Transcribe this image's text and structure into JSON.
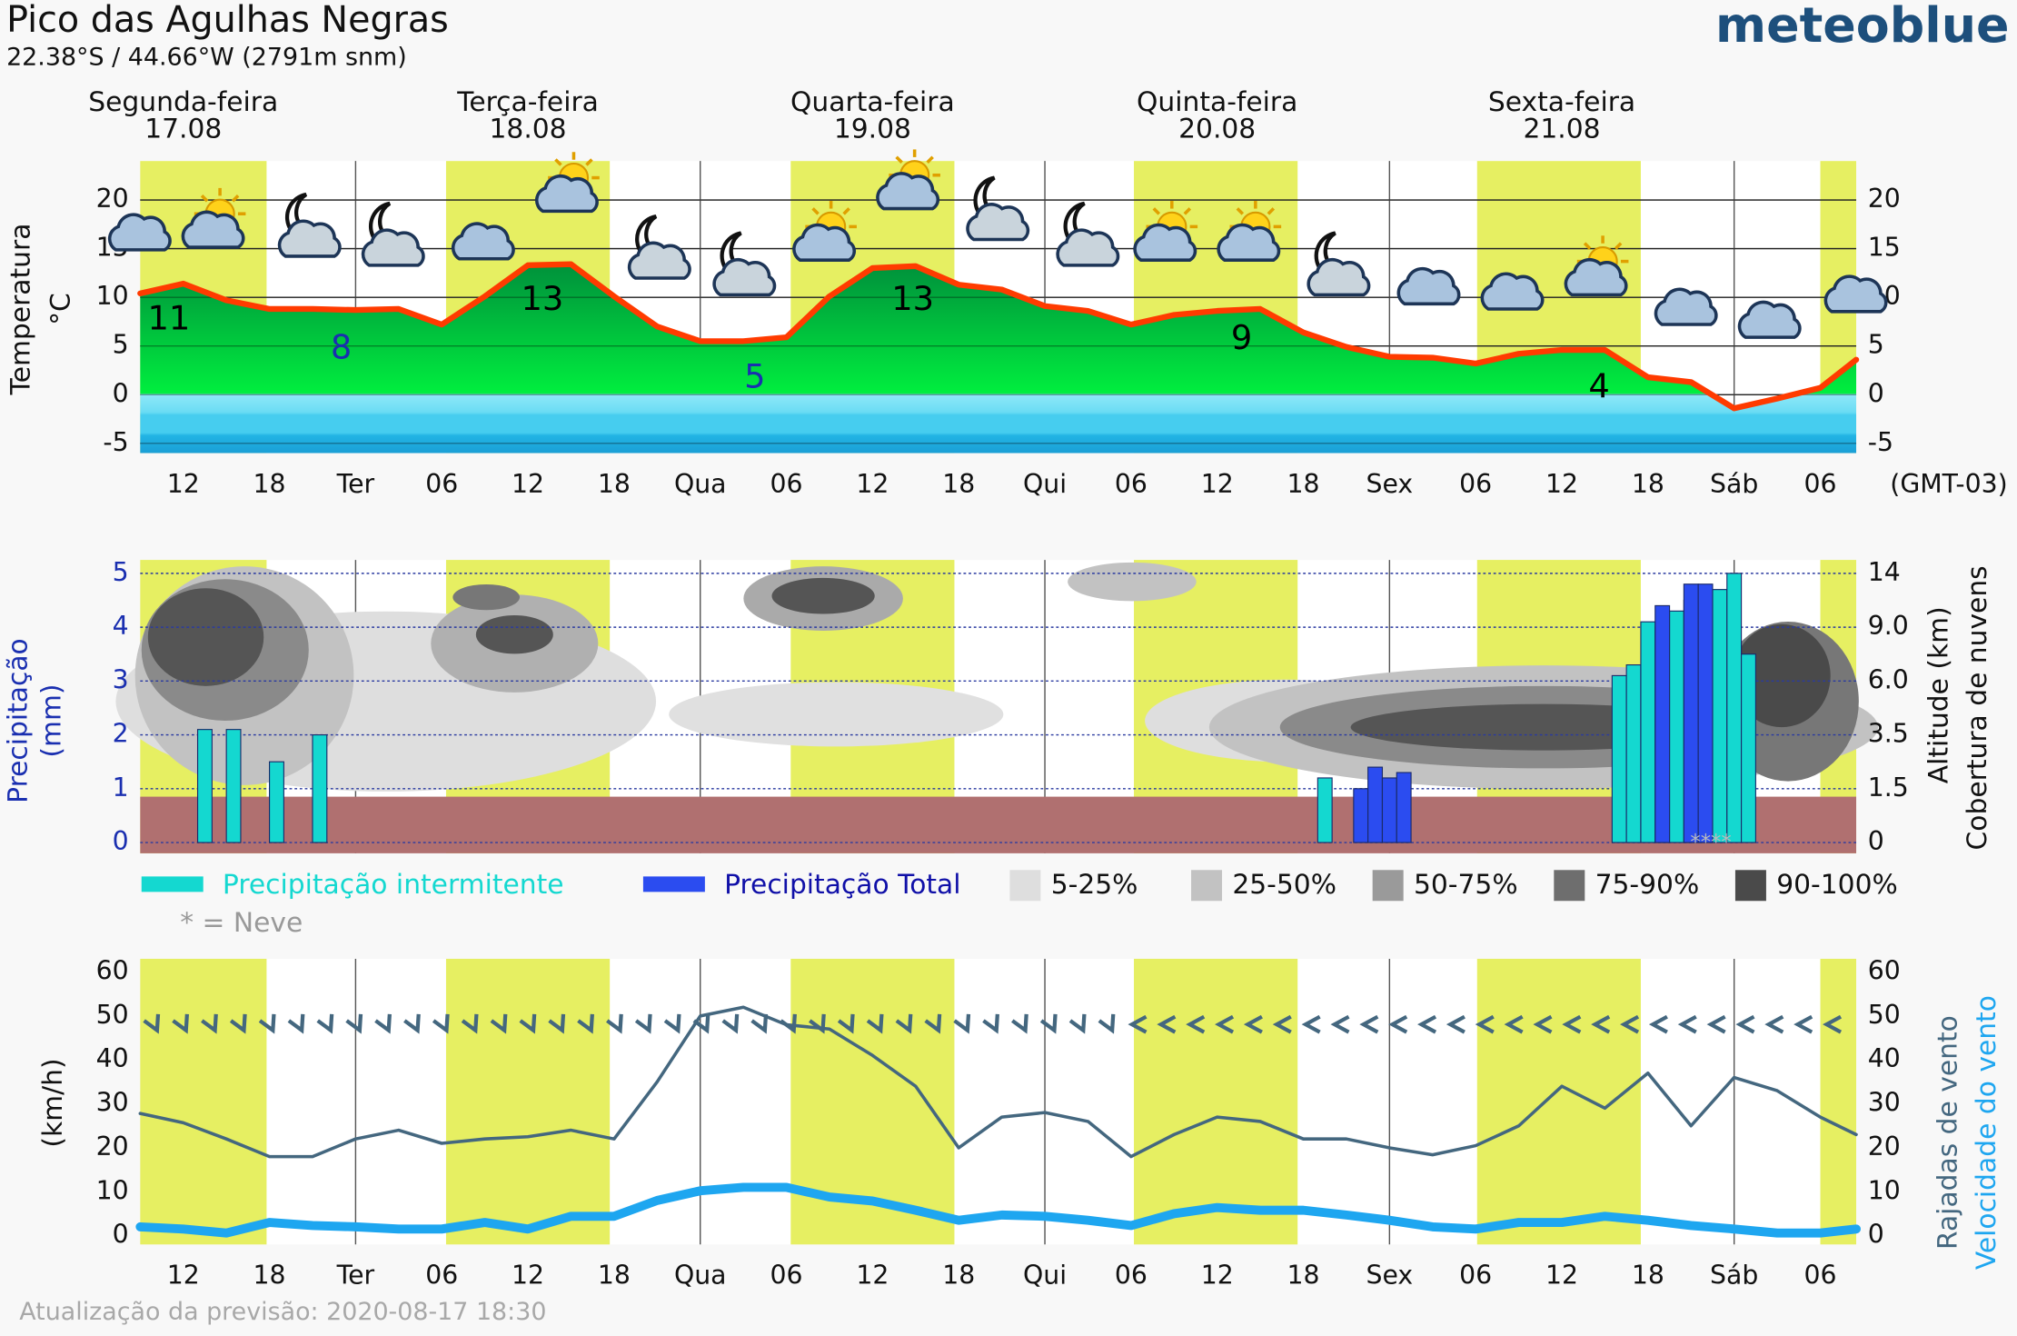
{
  "header": {
    "title": "Pico das Agulhas Negras",
    "subtitle": "22.38°S / 44.66°W (2791m snm)",
    "brand": "meteoblue",
    "timezone": "(GMT-03)"
  },
  "days": [
    {
      "name": "Segunda-feira",
      "date": "17.08"
    },
    {
      "name": "Terça-feira",
      "date": "18.08"
    },
    {
      "name": "Quarta-feira",
      "date": "19.08"
    },
    {
      "name": "Quinta-feira",
      "date": "20.08"
    },
    {
      "name": "Sexta-feira",
      "date": "21.08"
    }
  ],
  "daylight": [
    [
      9,
      17.8
    ],
    [
      30.3,
      41.7
    ],
    [
      54.3,
      65.7
    ],
    [
      78.2,
      89.6
    ],
    [
      102.1,
      113.5
    ],
    [
      126,
      128.5
    ]
  ],
  "footer": "Atualização da previsão: 2020-08-17 18:30",
  "chart_data": [
    {
      "type": "line",
      "fill": true,
      "grid": true,
      "ylabel": "Temperatura",
      "yunit": "°C",
      "xlim": [
        9,
        128.5
      ],
      "xticks": [
        12,
        18,
        {
          "value": 24,
          "label": "Ter"
        },
        {
          "value": 30,
          "label": "06"
        },
        {
          "value": 36,
          "label": "12"
        },
        {
          "value": 42,
          "label": "18"
        },
        {
          "value": 48,
          "label": "Qua"
        },
        {
          "value": 54,
          "label": "06"
        },
        {
          "value": 60,
          "label": "12"
        },
        {
          "value": 66,
          "label": "18"
        },
        {
          "value": 72,
          "label": "Qui"
        },
        {
          "value": 78,
          "label": "06"
        },
        {
          "value": 84,
          "label": "12"
        },
        {
          "value": 90,
          "label": "18"
        },
        {
          "value": 96,
          "label": "Sex"
        },
        {
          "value": 102,
          "label": "06"
        },
        {
          "value": 108,
          "label": "12"
        },
        {
          "value": 114,
          "label": "18"
        },
        {
          "value": 120,
          "label": "Sáb"
        },
        {
          "value": 126,
          "label": "06"
        }
      ],
      "ylim": [
        -6,
        24
      ],
      "yticks": [
        -5,
        0,
        5,
        10,
        15,
        20
      ],
      "y2lim": [
        -6,
        24
      ],
      "y2ticks": [
        -5,
        0,
        5,
        10,
        15,
        20
      ],
      "x": [
        9,
        12,
        15,
        18,
        21,
        24,
        27,
        30,
        33,
        36,
        39,
        42,
        45,
        48,
        51,
        54,
        57,
        60,
        63,
        66,
        69,
        72,
        75,
        78,
        81,
        84,
        87,
        90,
        93,
        96,
        99,
        102,
        105,
        108,
        111,
        114,
        117,
        120,
        123,
        126,
        128.5
      ],
      "series": [
        {
          "color": "#ff3b00",
          "values": [
            10.4,
            11.4,
            9.7,
            8.8,
            8.8,
            8.7,
            8.8,
            7.2,
            10.1,
            13.3,
            13.4,
            10.1,
            7.0,
            5.5,
            5.5,
            5.9,
            10.1,
            13.0,
            13.2,
            11.3,
            10.8,
            9.1,
            8.6,
            7.2,
            8.2,
            8.6,
            8.8,
            6.4,
            4.9,
            3.9,
            3.8,
            3.2,
            4.2,
            4.6,
            4.6,
            1.8,
            1.3,
            -1.4,
            -0.4,
            0.7,
            3.6
          ]
        }
      ],
      "extremes": {
        "x": [
          11,
          23,
          37,
          51.8,
          62.8,
          85.7,
          110.6
        ],
        "values": [
          11,
          8,
          13,
          5,
          13,
          9,
          4
        ],
        "colors": [
          "#000000",
          "#1a2fb0",
          "#000000",
          "#1a2fb0",
          "#000000",
          "#000000",
          "#000000"
        ]
      }
    },
    {
      "type": "bar",
      "grid": true,
      "ylabel": "Precipitação",
      "yunit": "(mm)",
      "y2label": "Altitude (km)",
      "y2label2": "Cobertura de nuvens",
      "xlim": [
        9,
        128.5
      ],
      "ylim": [
        -0.2,
        5.25
      ],
      "yticks": [
        0,
        1,
        2,
        3,
        4,
        5
      ],
      "y2ticks": [
        0,
        1.5,
        3.5,
        {
          "value": 6,
          "label": "6.0"
        },
        {
          "value": 9,
          "label": "9.0"
        },
        14
      ],
      "series": [
        {
          "name": "Precipitação intermitente",
          "color": "#14d8d0",
          "x": [
            13.5,
            15.5,
            18.5,
            21.5,
            91.5,
            112,
            113,
            114,
            115,
            116,
            117,
            118,
            119,
            120,
            121
          ],
          "values": [
            2.1,
            2.1,
            1.5,
            2.0,
            1.2,
            3.1,
            3.3,
            4.1,
            4.0,
            4.3,
            4.5,
            4.7,
            4.7,
            5.0,
            3.5
          ]
        },
        {
          "name": "Precipitação Total",
          "color": "#2b4cf0",
          "x": [
            94,
            95,
            96,
            97,
            115,
            117,
            118
          ],
          "values": [
            1.0,
            1.4,
            1.2,
            1.3,
            4.4,
            4.8,
            4.8
          ]
        }
      ],
      "cloud_legend": [
        {
          "label": "5-25%",
          "color": "#dedede"
        },
        {
          "label": "25-50%",
          "color": "#c2c2c2"
        },
        {
          "label": "50-75%",
          "color": "#9a9a9a"
        },
        {
          "label": "75-90%",
          "color": "#6e6e6e"
        },
        {
          "label": "90-100%",
          "color": "#4a4a4a"
        }
      ],
      "snow_note": "* = Neve",
      "snow_label": "****"
    },
    {
      "type": "line",
      "grid": false,
      "ylabel": "(km/h)",
      "xlim": [
        9,
        128.5
      ],
      "xticks": [
        12,
        18,
        {
          "value": 24,
          "label": "Ter"
        },
        {
          "value": 30,
          "label": "06"
        },
        {
          "value": 36,
          "label": "12"
        },
        {
          "value": 42,
          "label": "18"
        },
        {
          "value": 48,
          "label": "Qua"
        },
        {
          "value": 54,
          "label": "06"
        },
        {
          "value": 60,
          "label": "12"
        },
        {
          "value": 66,
          "label": "18"
        },
        {
          "value": 72,
          "label": "Qui"
        },
        {
          "value": 78,
          "label": "06"
        },
        {
          "value": 84,
          "label": "12"
        },
        {
          "value": 90,
          "label": "18"
        },
        {
          "value": 96,
          "label": "Sex"
        },
        {
          "value": 102,
          "label": "06"
        },
        {
          "value": 108,
          "label": "12"
        },
        {
          "value": 114,
          "label": "18"
        },
        {
          "value": 120,
          "label": "Sáb"
        },
        {
          "value": 126,
          "label": "06"
        }
      ],
      "ylim": [
        -2,
        63
      ],
      "yticks": [
        0,
        10,
        20,
        30,
        40,
        50,
        60
      ],
      "y2lim": [
        -2,
        63
      ],
      "y2ticks": [
        0,
        10,
        20,
        30,
        40,
        50,
        60
      ],
      "x": [
        9,
        12,
        15,
        18,
        21,
        24,
        27,
        30,
        33,
        36,
        39,
        42,
        45,
        48,
        51,
        54,
        57,
        60,
        63,
        66,
        69,
        72,
        75,
        78,
        81,
        84,
        87,
        90,
        93,
        96,
        99,
        102,
        105,
        108,
        111,
        114,
        117,
        120,
        123,
        126,
        128.5
      ],
      "series": [
        {
          "name": "Rajadas de vento",
          "color": "#44677f",
          "values": [
            27.8,
            25.7,
            22,
            18,
            18,
            22,
            24,
            21,
            22,
            22.5,
            24,
            22,
            35,
            50,
            52,
            48,
            47,
            41,
            34,
            20,
            27,
            28,
            26,
            18,
            23,
            27,
            26,
            22,
            22,
            20,
            18.4,
            20.5,
            25,
            34,
            29,
            37,
            25,
            36,
            33,
            27,
            23
          ]
        },
        {
          "name": "Velocidade do vento",
          "color": "#1ea6f0",
          "values": [
            2,
            1.5,
            0.6,
            3,
            2.3,
            2,
            1.5,
            1.5,
            3,
            1.5,
            4.4,
            4.4,
            8,
            10.2,
            11,
            11,
            8.8,
            7.9,
            5.8,
            3.5,
            4.7,
            4.4,
            3.5,
            2.3,
            5,
            6.4,
            5.8,
            5.8,
            4.7,
            3.5,
            2,
            1.5,
            3,
            3,
            4.4,
            3.5,
            2.3,
            1.5,
            0.6,
            0.6,
            1.5
          ]
        }
      ]
    }
  ]
}
